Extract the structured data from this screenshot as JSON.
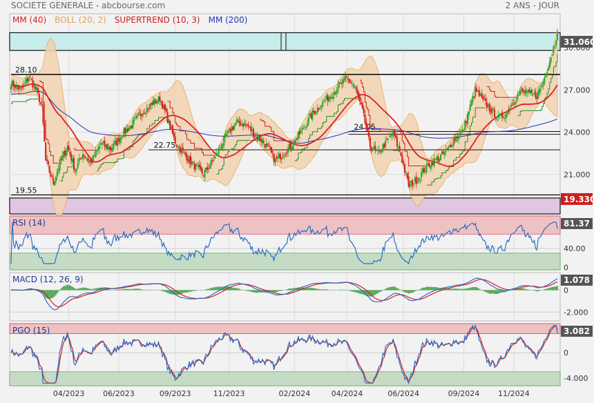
{
  "header": {
    "title": "SOCIETE GENERALE - abcbourse.com",
    "period": "2 ANS - JOUR"
  },
  "colors": {
    "up_candle": "#2aa52a",
    "down_candle": "#d22020",
    "mm40": "#dd2020",
    "mm200": "#2233bb",
    "boll_fill": "#f2d2b0",
    "boll_line": "#e8a860",
    "supertrend_bull": "#2a8a2a",
    "supertrend_bear": "#cc2020",
    "indicator_blue": "#2b6cc4",
    "indicator_red": "#d02020",
    "macd_hist": "#5cab5c",
    "zone_red": "#eec2c2",
    "zone_green": "#c4dcc4",
    "box_cyan": "#c6ecec",
    "box_violet": "#e0c6e0",
    "axis_badge": "#555555",
    "axis_badge_red": "#cc1f1f"
  },
  "chart_data": [
    {
      "panel": "price",
      "type": "candlestick",
      "legend": [
        {
          "label": "MM (40)",
          "color": "#dd2020"
        },
        {
          "label": "BOLL (20, 2)",
          "color": "#e8a050"
        },
        {
          "label": "SUPERTREND (10, 3)",
          "color": "#cc1f1f"
        },
        {
          "label": "MM (200)",
          "color": "#2233bb"
        }
      ],
      "yaxis": {
        "ticks": [
          "30.000",
          "27.000",
          "24.000",
          "21.000"
        ],
        "tick_values": [
          30,
          27,
          24,
          21
        ],
        "range": [
          18.2,
          32.4
        ]
      },
      "xaxis": {
        "ticks": [
          "04/2023",
          "06/2023",
          "09/2023",
          "11/2023",
          "02/2024",
          "04/2024",
          "06/2024",
          "09/2024",
          "11/2024"
        ],
        "tick_index": [
          45,
          84,
          128,
          170,
          221,
          262,
          306,
          353,
          392
        ]
      },
      "last_value": "31.060",
      "level_badge": "19.330",
      "levels": [
        {
          "label": "28.10",
          "value": 28.1,
          "from_index": 0
        },
        {
          "label": "24.05",
          "value": 24.05,
          "from_index": 263
        },
        {
          "label": "22.75",
          "value": 22.75,
          "from_index": 107
        },
        {
          "label": "19.55",
          "value": 19.55,
          "from_index": 0
        }
      ],
      "boxes": [
        {
          "name": "resistance-zone",
          "low": 29.8,
          "high": 31.06
        },
        {
          "name": "support-zone",
          "low": 18.2,
          "high": 19.33
        }
      ],
      "anchors": [
        [
          0,
          27.5
        ],
        [
          8,
          27.0
        ],
        [
          14,
          27.9
        ],
        [
          20,
          26.9
        ],
        [
          24,
          25.8
        ],
        [
          27,
          22.0
        ],
        [
          33,
          20.4
        ],
        [
          38,
          21.8
        ],
        [
          44,
          23.0
        ],
        [
          50,
          21.3
        ],
        [
          56,
          22.5
        ],
        [
          62,
          21.8
        ],
        [
          70,
          23.2
        ],
        [
          78,
          22.8
        ],
        [
          86,
          23.8
        ],
        [
          94,
          24.5
        ],
        [
          102,
          25.4
        ],
        [
          110,
          26.0
        ],
        [
          116,
          26.4
        ],
        [
          120,
          25.5
        ],
        [
          124,
          24.4
        ],
        [
          128,
          23.3
        ],
        [
          134,
          22.6
        ],
        [
          142,
          21.7
        ],
        [
          150,
          21.0
        ],
        [
          156,
          21.8
        ],
        [
          162,
          22.7
        ],
        [
          168,
          23.8
        ],
        [
          176,
          24.7
        ],
        [
          184,
          24.5
        ],
        [
          190,
          23.8
        ],
        [
          196,
          23.4
        ],
        [
          200,
          22.9
        ],
        [
          206,
          22.0
        ],
        [
          212,
          22.5
        ],
        [
          218,
          23.0
        ],
        [
          226,
          24.0
        ],
        [
          234,
          25.2
        ],
        [
          242,
          26.0
        ],
        [
          250,
          26.7
        ],
        [
          256,
          27.3
        ],
        [
          262,
          27.8
        ],
        [
          268,
          27.2
        ],
        [
          274,
          25.5
        ],
        [
          280,
          23.0
        ],
        [
          286,
          22.5
        ],
        [
          292,
          23.2
        ],
        [
          298,
          24.0
        ],
        [
          300,
          23.4
        ],
        [
          304,
          22.4
        ],
        [
          310,
          20.2
        ],
        [
          316,
          20.6
        ],
        [
          322,
          21.3
        ],
        [
          328,
          21.9
        ],
        [
          334,
          22.2
        ],
        [
          340,
          22.7
        ],
        [
          346,
          23.6
        ],
        [
          352,
          24.0
        ],
        [
          358,
          25.8
        ],
        [
          362,
          27.0
        ],
        [
          368,
          26.2
        ],
        [
          374,
          25.6
        ],
        [
          380,
          25.0
        ],
        [
          386,
          25.3
        ],
        [
          392,
          26.3
        ],
        [
          398,
          26.9
        ],
        [
          404,
          26.7
        ],
        [
          410,
          26.6
        ],
        [
          414,
          27.3
        ],
        [
          418,
          28.5
        ],
        [
          422,
          29.7
        ],
        [
          426,
          31.06
        ]
      ]
    },
    {
      "panel": "rsi",
      "label": "RSI (14)",
      "last_value": "81.37",
      "ticks": [
        "40.00",
        "0"
      ],
      "tick_values": [
        40,
        0
      ],
      "range": [
        -5,
        108
      ],
      "zones": {
        "upper": 70,
        "lower": 30
      }
    },
    {
      "panel": "macd",
      "label": "MACD (12, 26, 9)",
      "last_value": "1.078",
      "ticks": [
        "0",
        "-2.000"
      ],
      "tick_values": [
        0,
        -2
      ],
      "range": [
        -2.8,
        1.6
      ]
    },
    {
      "panel": "pgo",
      "label": "PGO (15)",
      "last_value": "3.082",
      "ticks": [
        "0",
        "-4.000"
      ],
      "tick_values": [
        0,
        -4
      ],
      "range": [
        -5.2,
        4.6
      ],
      "zones": {
        "upper": 3,
        "lower": -3
      }
    }
  ]
}
